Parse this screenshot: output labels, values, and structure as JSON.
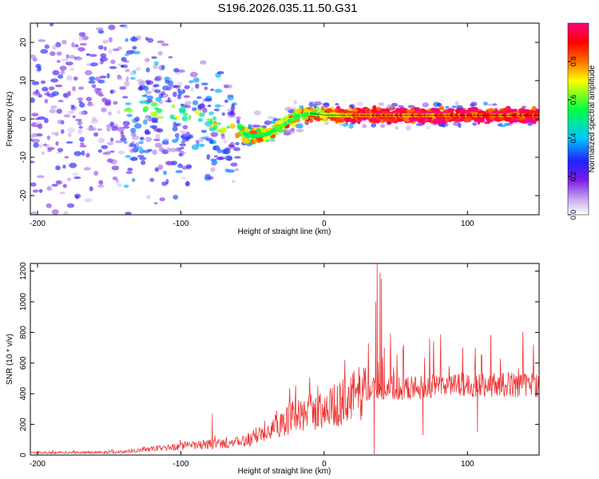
{
  "figure": {
    "title": "S196.2026.035.11.50.G31"
  },
  "chart_data": [
    {
      "type": "heatmap",
      "name": "spectrogram",
      "title": "S196.2026.035.11.50.G31",
      "xlabel": "Height of straight line (km)",
      "ylabel": "Frequency (Hz)",
      "xlim": [
        -205,
        150
      ],
      "ylim": [
        -25,
        25
      ],
      "xticks": [
        -200,
        -100,
        0,
        100
      ],
      "yticks": [
        -20,
        -10,
        0,
        10,
        20
      ],
      "colorbar": {
        "label": "Normalized spectral amplitude",
        "range": [
          0,
          1
        ],
        "ticks": [
          "0.0",
          "0.2",
          "0.4",
          "0.6",
          "0.8"
        ],
        "colormap": [
          "#ffffff",
          "#c8a8f0",
          "#7a1ee6",
          "#2020ff",
          "#00c8ff",
          "#00ff40",
          "#ffff00",
          "#ff7000",
          "#ff0000",
          "#ff0080"
        ]
      },
      "ridge": {
        "x": [
          -205,
          -150,
          -120,
          -100,
          -80,
          -60,
          -50,
          -40,
          -30,
          -20,
          -10,
          0,
          20,
          40,
          60,
          80,
          100,
          120,
          150
        ],
        "y": [
          4,
          4,
          2.5,
          1,
          -1,
          -3.5,
          -4.5,
          -4,
          -2,
          0.5,
          1.5,
          1,
          1,
          1,
          1,
          1,
          1,
          1,
          1
        ]
      },
      "strength": {
        "x": [
          -205,
          -150,
          -140,
          -120,
          -100,
          -80,
          -60,
          -40,
          -20,
          0,
          20,
          40,
          60,
          80,
          100,
          150
        ],
        "v": [
          0.22,
          0.22,
          0.32,
          0.35,
          0.42,
          0.45,
          0.55,
          0.6,
          0.62,
          0.7,
          0.85,
          0.9,
          0.9,
          0.92,
          0.92,
          0.92
        ]
      }
    },
    {
      "type": "line",
      "name": "snr",
      "xlabel": "Height of straight line (km)",
      "ylabel": "SNR (10 * v/v)",
      "xlim": [
        -205,
        150
      ],
      "ylim": [
        0,
        1250
      ],
      "xticks": [
        -200,
        -100,
        0,
        100
      ],
      "yticks": [
        0,
        200,
        400,
        600,
        800,
        1000,
        1200
      ],
      "color": "#ee3333",
      "envelope": {
        "x": [
          -205,
          -150,
          -140,
          -120,
          -100,
          -80,
          -60,
          -50,
          -40,
          -30,
          -20,
          -10,
          0,
          10,
          20,
          30,
          40,
          60,
          80,
          100,
          120,
          150
        ],
        "mean": [
          15,
          18,
          22,
          40,
          55,
          70,
          80,
          110,
          170,
          220,
          250,
          280,
          300,
          330,
          380,
          430,
          440,
          440,
          450,
          460,
          460,
          460
        ]
      },
      "spikes": [
        {
          "x": -78,
          "y": 270
        },
        {
          "x": 36,
          "y": 1000
        },
        {
          "x": 37,
          "y": 1250
        },
        {
          "x": 39,
          "y": 1190
        },
        {
          "x": 40,
          "y": 1150
        },
        {
          "x": 42,
          "y": 700
        },
        {
          "x": 35,
          "y": 5
        },
        {
          "x": 69,
          "y": 130
        },
        {
          "x": 107,
          "y": 150
        }
      ]
    }
  ]
}
